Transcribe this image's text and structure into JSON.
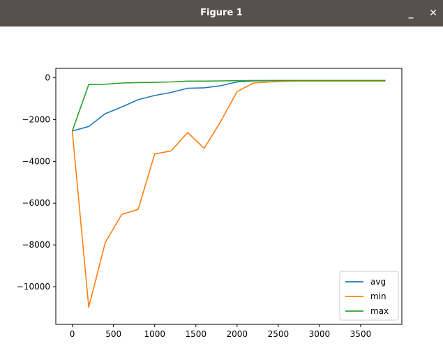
{
  "window": {
    "title": "Figure 1",
    "minimize_label": "_",
    "close_label": "✕"
  },
  "colors": {
    "titlebar": "#57504b",
    "avg": "#1f77b4",
    "min": "#ff7f0e",
    "max": "#2ca02c"
  },
  "chart_data": {
    "type": "line",
    "title": "",
    "xlabel": "",
    "ylabel": "",
    "xlim": [
      -200,
      4000
    ],
    "ylim": [
      -11800,
      450
    ],
    "xticks": [
      0,
      500,
      1000,
      1500,
      2000,
      2500,
      3000,
      3500
    ],
    "yticks": [
      0,
      -2000,
      -4000,
      -6000,
      -8000,
      -10000
    ],
    "grid": false,
    "legend_position": "lower right",
    "x": [
      0,
      200,
      400,
      600,
      800,
      1000,
      1200,
      1400,
      1600,
      1800,
      2000,
      2200,
      2400,
      2600,
      2800,
      3000,
      3200,
      3400,
      3600,
      3800
    ],
    "series": [
      {
        "name": "avg",
        "color": "#1f77b4",
        "values": [
          -2550,
          -2330,
          -1720,
          -1400,
          -1050,
          -850,
          -700,
          -500,
          -480,
          -380,
          -200,
          -150,
          -140,
          -130,
          -130,
          -130,
          -130,
          -130,
          -130,
          -130
        ]
      },
      {
        "name": "min",
        "color": "#ff7f0e",
        "values": [
          -2550,
          -10980,
          -7880,
          -6540,
          -6300,
          -3650,
          -3500,
          -2620,
          -3380,
          -2100,
          -660,
          -250,
          -200,
          -170,
          -160,
          -160,
          -160,
          -160,
          -160,
          -160
        ]
      },
      {
        "name": "max",
        "color": "#2ca02c",
        "values": [
          -2550,
          -320,
          -310,
          -250,
          -230,
          -220,
          -200,
          -160,
          -160,
          -150,
          -140,
          -130,
          -130,
          -130,
          -130,
          -130,
          -130,
          -130,
          -130,
          -130
        ]
      }
    ]
  }
}
